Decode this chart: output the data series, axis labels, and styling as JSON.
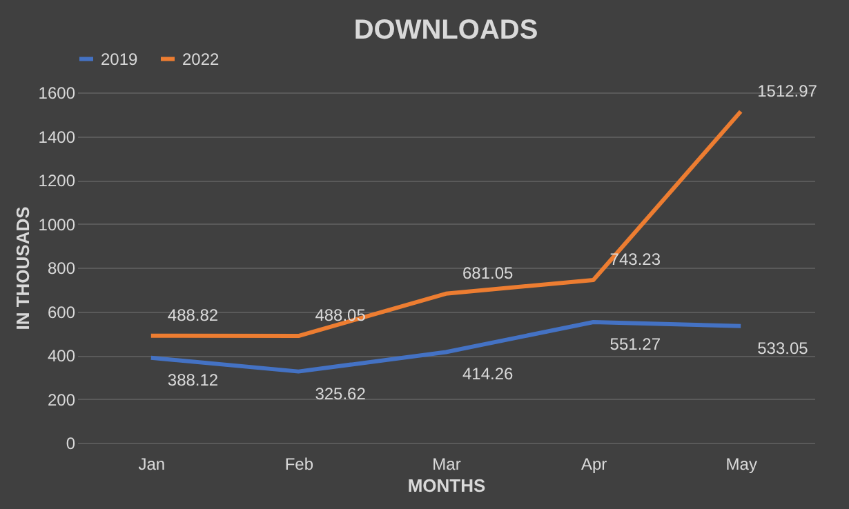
{
  "chart_data": {
    "type": "line",
    "title": "DOWNLOADS",
    "xlabel": "MONTHS",
    "ylabel": "IN THOUSADS",
    "categories": [
      "Jan",
      "Feb",
      "Mar",
      "Apr",
      "May"
    ],
    "series": [
      {
        "name": "2019",
        "color": "#4472c4",
        "values": [
          388.12,
          325.62,
          414.26,
          551.27,
          533.05
        ]
      },
      {
        "name": "2022",
        "color": "#ed7d31",
        "values": [
          488.82,
          488.05,
          681.05,
          743.23,
          1512.97
        ]
      }
    ],
    "ylim": [
      0,
      1600
    ],
    "yticks": [
      0,
      200,
      400,
      600,
      800,
      1000,
      1200,
      1400,
      1600
    ],
    "grid": "y",
    "legend": "top",
    "data_labels": true,
    "marker": "none",
    "line_style": "solid"
  }
}
